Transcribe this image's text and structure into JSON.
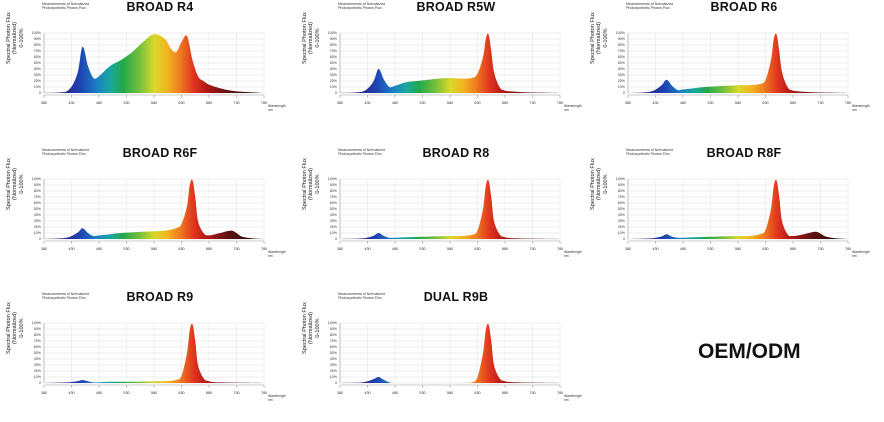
{
  "caption": "Measurements of Normalized Photosynthetic Photon Flux",
  "ylabel_line1": "Spectral Photon Flux (Normalized)",
  "ylabel_line2": "0-100%",
  "xlabel_line1": "Wavelength",
  "xlabel_line2": "nm",
  "oem_label": "OEM/ODM",
  "chart_data": [
    {
      "type": "area",
      "title": "BROAD R4",
      "xlim": [
        380,
        780
      ],
      "ylim": [
        0,
        100
      ],
      "yticks": [
        "0",
        "10%",
        "20%",
        "30%",
        "40%",
        "50%",
        "60%",
        "70%",
        "80%",
        "90%",
        "100%"
      ],
      "xticks": [
        380,
        430,
        480,
        530,
        580,
        630,
        680,
        730,
        780
      ],
      "x": [
        380,
        420,
        440,
        450,
        460,
        470,
        480,
        500,
        520,
        540,
        560,
        580,
        600,
        610,
        620,
        630,
        640,
        650,
        660,
        670,
        680,
        700,
        720,
        740,
        760,
        780
      ],
      "y": [
        0,
        2,
        30,
        77,
        45,
        25,
        28,
        45,
        55,
        68,
        85,
        98,
        90,
        75,
        68,
        85,
        95,
        55,
        28,
        20,
        14,
        8,
        4,
        2,
        1,
        0
      ]
    },
    {
      "type": "area",
      "title": "BROAD R5W",
      "xlim": [
        380,
        780
      ],
      "ylim": [
        0,
        100
      ],
      "yticks": [
        "0",
        "10%",
        "20%",
        "30%",
        "40%",
        "50%",
        "60%",
        "70%",
        "80%",
        "90%",
        "100%"
      ],
      "xticks": [
        380,
        430,
        480,
        530,
        580,
        630,
        680,
        730,
        780
      ],
      "x": [
        380,
        420,
        440,
        450,
        460,
        470,
        480,
        500,
        520,
        540,
        560,
        580,
        600,
        620,
        630,
        640,
        645,
        650,
        655,
        660,
        670,
        680,
        700,
        720,
        780
      ],
      "y": [
        0,
        2,
        18,
        40,
        22,
        10,
        12,
        18,
        20,
        22,
        24,
        25,
        24,
        25,
        32,
        60,
        90,
        98,
        70,
        35,
        10,
        4,
        2,
        1,
        0
      ]
    },
    {
      "type": "area",
      "title": "BROAD R6",
      "xlim": [
        380,
        780
      ],
      "ylim": [
        0,
        100
      ],
      "yticks": [
        "0",
        "10%",
        "20%",
        "30%",
        "40%",
        "50%",
        "60%",
        "70%",
        "80%",
        "90%",
        "100%"
      ],
      "xticks": [
        380,
        430,
        480,
        530,
        580,
        630,
        680,
        730,
        780
      ],
      "x": [
        380,
        420,
        440,
        450,
        460,
        470,
        480,
        500,
        520,
        540,
        560,
        580,
        600,
        620,
        630,
        640,
        645,
        650,
        655,
        660,
        670,
        680,
        700,
        720,
        780
      ],
      "y": [
        0,
        2,
        12,
        22,
        12,
        5,
        6,
        8,
        10,
        11,
        12,
        13,
        13,
        15,
        22,
        55,
        90,
        98,
        70,
        35,
        10,
        4,
        2,
        1,
        0
      ]
    },
    {
      "type": "area",
      "title": "BROAD R6F",
      "xlim": [
        380,
        780
      ],
      "ylim": [
        0,
        100
      ],
      "yticks": [
        "0",
        "10%",
        "20%",
        "30%",
        "40%",
        "50%",
        "60%",
        "70%",
        "80%",
        "90%",
        "100%"
      ],
      "xticks": [
        380,
        430,
        480,
        530,
        580,
        630,
        680,
        730,
        780
      ],
      "x": [
        380,
        420,
        440,
        450,
        460,
        470,
        480,
        500,
        520,
        540,
        560,
        580,
        600,
        620,
        630,
        640,
        645,
        650,
        655,
        660,
        670,
        680,
        700,
        720,
        730,
        740,
        760,
        780
      ],
      "y": [
        0,
        2,
        10,
        18,
        10,
        5,
        6,
        8,
        10,
        11,
        12,
        13,
        14,
        18,
        25,
        55,
        90,
        98,
        70,
        30,
        10,
        6,
        10,
        14,
        10,
        4,
        1,
        0
      ]
    },
    {
      "type": "area",
      "title": "BROAD R8",
      "xlim": [
        380,
        780
      ],
      "ylim": [
        0,
        100
      ],
      "yticks": [
        "0",
        "10%",
        "20%",
        "30%",
        "40%",
        "50%",
        "60%",
        "70%",
        "80%",
        "90%",
        "100%"
      ],
      "xticks": [
        380,
        430,
        480,
        530,
        580,
        630,
        680,
        730,
        780
      ],
      "x": [
        380,
        420,
        440,
        450,
        460,
        470,
        480,
        500,
        540,
        580,
        600,
        620,
        630,
        640,
        645,
        650,
        655,
        660,
        670,
        680,
        700,
        780
      ],
      "y": [
        0,
        1,
        5,
        10,
        5,
        2,
        2,
        3,
        4,
        5,
        5,
        7,
        14,
        50,
        88,
        98,
        70,
        30,
        8,
        3,
        1,
        0
      ]
    },
    {
      "type": "area",
      "title": "BROAD R8F",
      "xlim": [
        380,
        780
      ],
      "ylim": [
        0,
        100
      ],
      "yticks": [
        "0",
        "10%",
        "20%",
        "30%",
        "40%",
        "50%",
        "60%",
        "70%",
        "80%",
        "90%",
        "100%"
      ],
      "xticks": [
        380,
        430,
        480,
        530,
        580,
        630,
        680,
        730,
        780
      ],
      "x": [
        380,
        420,
        440,
        450,
        460,
        470,
        480,
        500,
        540,
        580,
        600,
        620,
        630,
        640,
        645,
        650,
        655,
        660,
        670,
        680,
        700,
        720,
        730,
        740,
        760,
        780
      ],
      "y": [
        0,
        1,
        4,
        8,
        4,
        2,
        2,
        3,
        4,
        5,
        5,
        8,
        15,
        50,
        88,
        98,
        70,
        30,
        8,
        5,
        8,
        12,
        9,
        4,
        1,
        0
      ]
    },
    {
      "type": "area",
      "title": "BROAD R9",
      "xlim": [
        380,
        780
      ],
      "ylim": [
        0,
        100
      ],
      "yticks": [
        "0",
        "10%",
        "20%",
        "30%",
        "40%",
        "50%",
        "60%",
        "70%",
        "80%",
        "90%",
        "100%"
      ],
      "xticks": [
        380,
        430,
        480,
        530,
        580,
        630,
        680,
        730,
        780
      ],
      "x": [
        380,
        420,
        440,
        450,
        460,
        470,
        480,
        500,
        540,
        580,
        600,
        620,
        630,
        640,
        645,
        650,
        655,
        660,
        670,
        680,
        700,
        780
      ],
      "y": [
        0,
        1,
        3,
        5,
        3,
        1,
        1,
        2,
        2,
        3,
        3,
        5,
        12,
        50,
        88,
        98,
        70,
        30,
        8,
        3,
        1,
        0
      ]
    },
    {
      "type": "area",
      "title": "DUAL R9B",
      "xlim": [
        380,
        780
      ],
      "ylim": [
        0,
        100
      ],
      "yticks": [
        "0",
        "10%",
        "20%",
        "30%",
        "40%",
        "50%",
        "60%",
        "70%",
        "80%",
        "90%",
        "100%"
      ],
      "xticks": [
        380,
        430,
        480,
        530,
        580,
        630,
        680,
        730,
        780
      ],
      "x": [
        380,
        420,
        440,
        450,
        460,
        470,
        480,
        540,
        600,
        620,
        630,
        640,
        645,
        650,
        655,
        660,
        670,
        680,
        700,
        780
      ],
      "y": [
        0,
        1,
        6,
        10,
        5,
        1,
        0,
        0,
        0,
        1,
        10,
        50,
        88,
        98,
        70,
        30,
        8,
        3,
        1,
        0
      ]
    }
  ]
}
